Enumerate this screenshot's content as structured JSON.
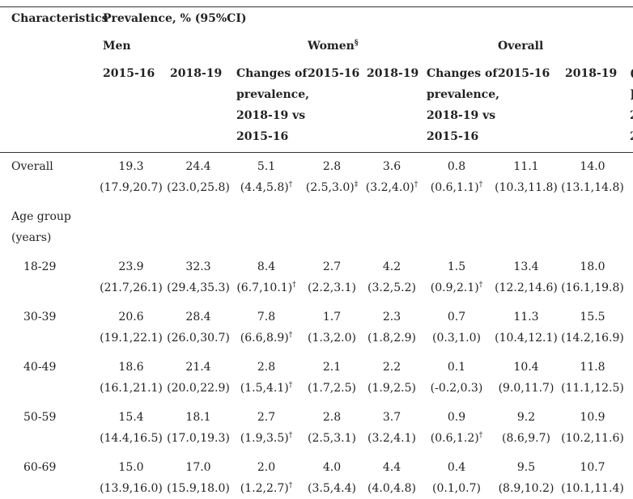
{
  "header": {
    "characteristics": "Characteristics",
    "prevalence": "Prevalence, % (95%CI)",
    "men": "Men",
    "women": "Women",
    "women_mark": "§",
    "overall": "Overall",
    "y1516": "2015-16",
    "y1819": "2018-19",
    "change_lines": [
      "Changes of",
      "prevalence,",
      "2018-19 vs",
      "2015-16"
    ],
    "clipped_col_lines": [
      "(",
      "]",
      "2",
      "2"
    ]
  },
  "rows": [
    {
      "label": [
        "Overall"
      ],
      "indent": false,
      "values": [
        "19.3",
        "24.4",
        "5.1",
        "2.8",
        "3.6",
        "0.8",
        "11.1",
        "14.0"
      ],
      "ci": [
        "(17.9,20.7)",
        "(23.0,25.8)",
        "(4.4,5.8)",
        "(2.5,3.0)",
        "(3.2,4.0)",
        "(0.6,1.1)",
        "(10.3,11.8)",
        "(13.1,14.8)"
      ],
      "marks": [
        "",
        "",
        "†",
        "‡",
        "†",
        "†",
        "",
        ""
      ]
    },
    {
      "label": [
        "Age group",
        "(years)"
      ],
      "indent": false,
      "values": [],
      "ci": [],
      "marks": []
    },
    {
      "label": [
        "18-29"
      ],
      "indent": true,
      "values": [
        "23.9",
        "32.3",
        "8.4",
        "2.7",
        "4.2",
        "1.5",
        "13.4",
        "18.0"
      ],
      "ci": [
        "(21.7,26.1)",
        "(29.4,35.3)",
        "(6.7,10.1)",
        "(2.2,3.1)",
        "(3.2,5.2)",
        "(0.9,2.1)",
        "(12.2,14.6)",
        "(16.1,19.8)"
      ],
      "marks": [
        "",
        "",
        "†",
        "",
        "",
        "†",
        "",
        ""
      ]
    },
    {
      "label": [
        "30-39"
      ],
      "indent": true,
      "values": [
        "20.6",
        "28.4",
        "7.8",
        "1.7",
        "2.3",
        "0.7",
        "11.3",
        "15.5"
      ],
      "ci": [
        "(19.1,22.1)",
        "(26.0,30.7)",
        "(6.6,8.9)",
        "(1.3,2.0)",
        "(1.8,2.9)",
        "(0.3,1.0)",
        "(10.4,12.1)",
        "(14.2,16.9)"
      ],
      "marks": [
        "",
        "",
        "†",
        "",
        "",
        "",
        "",
        ""
      ]
    },
    {
      "label": [
        "40-49"
      ],
      "indent": true,
      "values": [
        "18.6",
        "21.4",
        "2.8",
        "2.1",
        "2.2",
        "0.1",
        "10.4",
        "11.8"
      ],
      "ci": [
        "(16.1,21.1)",
        "(20.0,22.9)",
        "(1.5,4.1)",
        "(1.7,2.5)",
        "(1.9,2.5)",
        "(-0.2,0.3)",
        "(9.0,11.7)",
        "(11.1,12.5)"
      ],
      "marks": [
        "",
        "",
        "†",
        "",
        "",
        "",
        "",
        ""
      ]
    },
    {
      "label": [
        "50-59"
      ],
      "indent": true,
      "values": [
        "15.4",
        "18.1",
        "2.7",
        "2.8",
        "3.7",
        "0.9",
        "9.2",
        "10.9"
      ],
      "ci": [
        "(14.4,16.5)",
        "(17.0,19.3)",
        "(1.9,3.5)",
        "(2.5,3.1)",
        "(3.2,4.1)",
        "(0.6,1.2)",
        "(8.6,9.7)",
        "(10.2,11.6)"
      ],
      "marks": [
        "",
        "",
        "†",
        "",
        "",
        "†",
        "",
        ""
      ]
    },
    {
      "label": [
        "60-69"
      ],
      "indent": true,
      "values": [
        "15.0",
        "17.0",
        "2.0",
        "4.0",
        "4.4",
        "0.4",
        "9.5",
        "10.7"
      ],
      "ci": [
        "(13.9,16.0)",
        "(15.9,18.0)",
        "(1.2,2.7)",
        "(3.5,4.4)",
        "(4.0,4.8)",
        "(0.1,0.7)",
        "(8.9,10.2)",
        "(10.1,11.4)"
      ],
      "marks": [
        "",
        "",
        "†",
        "",
        "",
        "",
        "",
        ""
      ]
    }
  ]
}
